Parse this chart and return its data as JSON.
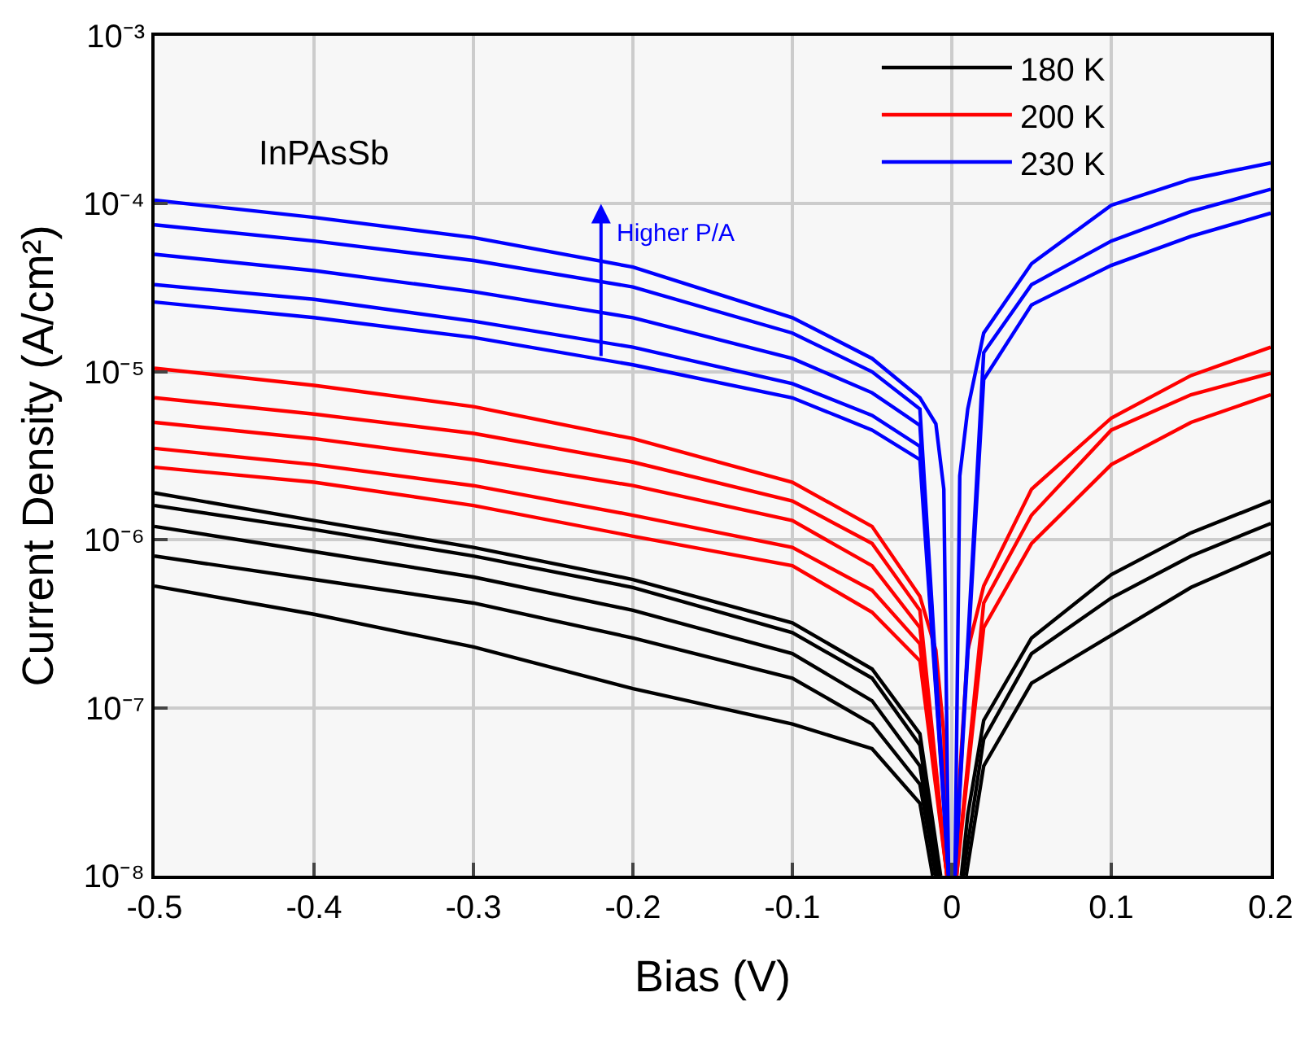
{
  "chart_data": {
    "type": "line",
    "xlabel": "Bias (V)",
    "ylabel": "Current Density (A/cm²)",
    "log": "y",
    "grid": true,
    "legend": "top right",
    "marker": "none",
    "line_style": "solid",
    "xlim": [
      -0.5,
      0.2
    ],
    "xticks": [
      -0.5,
      -0.4,
      -0.3,
      -0.2,
      -0.1,
      0,
      0.1,
      0.2
    ],
    "ylim": [
      1e-08,
      0.001
    ],
    "yticks": [
      {
        "value": 1e-08,
        "label": "10⁻⁸"
      },
      {
        "value": 1e-07,
        "label": "10⁻⁷"
      },
      {
        "value": 1e-06,
        "label": "10⁻⁶"
      },
      {
        "value": 1e-05,
        "label": "10⁻⁵"
      },
      {
        "value": 0.0001,
        "label": "10⁻⁴"
      },
      {
        "value": 0.001,
        "label": "10⁻³"
      }
    ],
    "annotations": [
      "InPAsSb",
      "Higher P/A"
    ],
    "series": [
      {
        "name": "180 K",
        "color": "#000000",
        "x": [
          -0.5,
          -0.4,
          -0.3,
          -0.2,
          -0.1,
          -0.05,
          -0.02,
          -0.007,
          0,
          0.006,
          0.01,
          0.02,
          0.05,
          0.1,
          0.15,
          0.2
        ],
        "values": [
          1.9e-06,
          1.3e-06,
          9e-07,
          5.8e-07,
          3.2e-07,
          1.7e-07,
          7e-08,
          1e-08,
          null,
          1e-08,
          2.3e-08,
          8.4e-08,
          2.6e-07,
          6.2e-07,
          1.1e-06,
          1.7e-06
        ]
      },
      {
        "color": "#000000",
        "x": [
          -0.5,
          -0.4,
          -0.3,
          -0.2,
          -0.1,
          -0.05,
          -0.02,
          -0.008,
          0,
          0.007,
          0.02,
          0.05,
          0.1,
          0.15,
          0.2
        ],
        "values": [
          1.6e-06,
          1.15e-06,
          8e-07,
          5.2e-07,
          2.8e-07,
          1.5e-07,
          6e-08,
          1e-08,
          null,
          1e-08,
          6.5e-08,
          2.1e-07,
          4.5e-07,
          8e-07,
          1.25e-06
        ]
      },
      {
        "color": "#000000",
        "x": [
          -0.5,
          -0.4,
          -0.3,
          -0.2,
          -0.1,
          -0.05,
          -0.02,
          -0.009,
          0,
          0.009,
          0.02,
          0.05,
          0.1,
          0.15,
          0.2
        ],
        "values": [
          1.2e-06,
          8.5e-07,
          6e-07,
          3.8e-07,
          2.1e-07,
          1.1e-07,
          4.5e-08,
          1e-08,
          null,
          1e-08,
          4.5e-08,
          1.4e-07,
          2.7e-07,
          5.2e-07,
          8.4e-07
        ]
      },
      {
        "color": "#000000",
        "x": [
          -0.5,
          -0.4,
          -0.3,
          -0.2,
          -0.1,
          -0.05,
          -0.02,
          -0.01
        ],
        "values": [
          8e-07,
          5.8e-07,
          4.2e-07,
          2.6e-07,
          1.5e-07,
          8e-08,
          3.5e-08,
          1e-08
        ]
      },
      {
        "color": "#000000",
        "x": [
          -0.5,
          -0.4,
          -0.3,
          -0.2,
          -0.1,
          -0.05,
          -0.02,
          -0.012
        ],
        "values": [
          5.3e-07,
          3.6e-07,
          2.3e-07,
          1.3e-07,
          8e-08,
          5.7e-08,
          2.7e-08,
          1e-08
        ]
      },
      {
        "name": "200 K",
        "color": "#ff0000",
        "x": [
          -0.5,
          -0.4,
          -0.3,
          -0.2,
          -0.1,
          -0.05,
          -0.02,
          -0.01,
          -0.005,
          -0.003,
          0,
          0.003,
          0.005,
          0.01,
          0.02,
          0.05,
          0.1,
          0.15,
          0.2
        ],
        "values": [
          1.05e-05,
          8.3e-06,
          6.2e-06,
          4e-06,
          2.2e-06,
          1.2e-06,
          4.6e-07,
          2.2e-07,
          7e-08,
          1e-08,
          null,
          1e-08,
          4e-08,
          2.2e-07,
          5.3e-07,
          2e-06,
          5.3e-06,
          9.5e-06,
          1.4e-05
        ]
      },
      {
        "color": "#ff0000",
        "x": [
          -0.5,
          -0.4,
          -0.3,
          -0.2,
          -0.1,
          -0.05,
          -0.02,
          -0.003,
          0,
          0.003,
          0.02,
          0.05,
          0.1,
          0.15,
          0.2
        ],
        "values": [
          7e-06,
          5.6e-06,
          4.3e-06,
          2.9e-06,
          1.7e-06,
          9.5e-07,
          3.8e-07,
          1e-08,
          null,
          1e-08,
          4.2e-07,
          1.4e-06,
          4.5e-06,
          7.3e-06,
          9.8e-06
        ]
      },
      {
        "color": "#ff0000",
        "x": [
          -0.5,
          -0.4,
          -0.3,
          -0.2,
          -0.1,
          -0.05,
          -0.02,
          -0.003,
          0,
          0.003,
          0.02,
          0.05,
          0.1,
          0.15,
          0.2
        ],
        "values": [
          5e-06,
          4e-06,
          3e-06,
          2.1e-06,
          1.3e-06,
          7e-07,
          3e-07,
          1e-08,
          null,
          1e-08,
          3e-07,
          9.5e-07,
          2.8e-06,
          5e-06,
          7.3e-06
        ]
      },
      {
        "color": "#ff0000",
        "x": [
          -0.5,
          -0.4,
          -0.3,
          -0.2,
          -0.1,
          -0.05,
          -0.02,
          -0.003
        ],
        "values": [
          3.5e-06,
          2.8e-06,
          2.1e-06,
          1.4e-06,
          9e-07,
          5e-07,
          2.4e-07,
          1e-08
        ]
      },
      {
        "color": "#ff0000",
        "x": [
          -0.5,
          -0.4,
          -0.3,
          -0.2,
          -0.1,
          -0.05,
          -0.02,
          -0.003
        ],
        "values": [
          2.7e-06,
          2.2e-06,
          1.6e-06,
          1.05e-06,
          7e-07,
          3.7e-07,
          1.9e-07,
          1e-08
        ]
      },
      {
        "name": "230 K",
        "color": "#0000ff",
        "x": [
          -0.5,
          -0.4,
          -0.3,
          -0.2,
          -0.1,
          -0.05,
          -0.02,
          -0.01,
          -0.005,
          -0.002,
          0,
          0.002,
          0.005,
          0.01,
          0.02,
          0.05,
          0.1,
          0.15,
          0.2
        ],
        "values": [
          0.000105,
          8.3e-05,
          6.3e-05,
          4.2e-05,
          2.1e-05,
          1.2e-05,
          7e-06,
          4.9e-06,
          2e-06,
          1e-08,
          null,
          1e-08,
          2.4e-06,
          6e-06,
          1.7e-05,
          4.4e-05,
          9.8e-05,
          0.00014,
          0.000175
        ]
      },
      {
        "color": "#0000ff",
        "x": [
          -0.5,
          -0.4,
          -0.3,
          -0.2,
          -0.1,
          -0.05,
          -0.02,
          -0.002,
          0,
          0.002,
          0.02,
          0.05,
          0.1,
          0.15,
          0.2
        ],
        "values": [
          7.5e-05,
          6e-05,
          4.6e-05,
          3.2e-05,
          1.7e-05,
          1e-05,
          6e-06,
          1e-08,
          null,
          1e-08,
          1.3e-05,
          3.3e-05,
          6e-05,
          9e-05,
          0.000122
        ]
      },
      {
        "color": "#0000ff",
        "x": [
          -0.5,
          -0.4,
          -0.3,
          -0.2,
          -0.1,
          -0.05,
          -0.02,
          -0.002,
          0,
          0.002,
          0.02,
          0.05,
          0.1,
          0.15,
          0.2
        ],
        "values": [
          5e-05,
          4e-05,
          3e-05,
          2.1e-05,
          1.2e-05,
          7.5e-06,
          4.8e-06,
          1e-08,
          null,
          1e-08,
          9e-06,
          2.5e-05,
          4.3e-05,
          6.4e-05,
          8.8e-05
        ]
      },
      {
        "color": "#0000ff",
        "x": [
          -0.5,
          -0.4,
          -0.3,
          -0.2,
          -0.1,
          -0.05,
          -0.02,
          -0.002
        ],
        "values": [
          3.3e-05,
          2.7e-05,
          2e-05,
          1.4e-05,
          8.5e-06,
          5.5e-06,
          3.6e-06,
          1e-08
        ]
      },
      {
        "color": "#0000ff",
        "x": [
          -0.5,
          -0.4,
          -0.3,
          -0.2,
          -0.1,
          -0.05,
          -0.02,
          -0.002
        ],
        "values": [
          2.6e-05,
          2.1e-05,
          1.6e-05,
          1.1e-05,
          7e-06,
          4.5e-06,
          3e-06,
          1e-08
        ]
      }
    ]
  }
}
